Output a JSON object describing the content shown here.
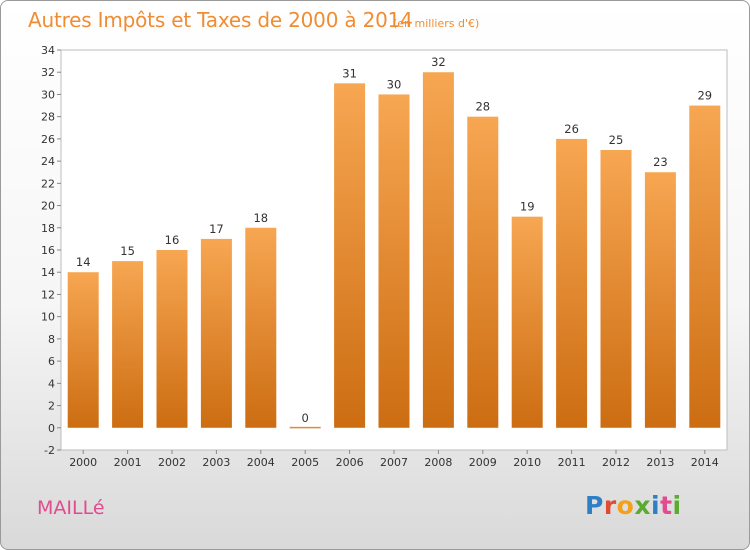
{
  "chart_data": {
    "type": "bar",
    "title": "Autres Impôts et Taxes de 2000 à 2014",
    "subtitle": "(en milliers d'€)",
    "categories": [
      "2000",
      "2001",
      "2002",
      "2003",
      "2004",
      "2005",
      "2006",
      "2007",
      "2008",
      "2009",
      "2010",
      "2011",
      "2012",
      "2013",
      "2014"
    ],
    "values": [
      14,
      15,
      16,
      17,
      18,
      0,
      31,
      30,
      32,
      28,
      19,
      26,
      25,
      23,
      29
    ],
    "ylim": [
      -2,
      34
    ],
    "yticks": [
      -2,
      0,
      2,
      4,
      6,
      8,
      10,
      12,
      14,
      16,
      18,
      20,
      22,
      24,
      26,
      28,
      30,
      32,
      34
    ],
    "grid": false,
    "colors": {
      "bar_top": "#f7a652",
      "bar_bottom": "#cc6d12",
      "title": "#f08c32"
    }
  },
  "footer": {
    "commune": "MAILLé",
    "logo": [
      {
        "ch": "P",
        "color": "#2f7fc7"
      },
      {
        "ch": "r",
        "color": "#e14b2f"
      },
      {
        "ch": "o",
        "color": "#f3a01a"
      },
      {
        "ch": "x",
        "color": "#5aab2f"
      },
      {
        "ch": "i",
        "color": "#2f7fc7"
      },
      {
        "ch": "t",
        "color": "#e14b8f"
      },
      {
        "ch": "i",
        "color": "#5aab2f"
      }
    ],
    "commune_color": "#e14b8f"
  }
}
